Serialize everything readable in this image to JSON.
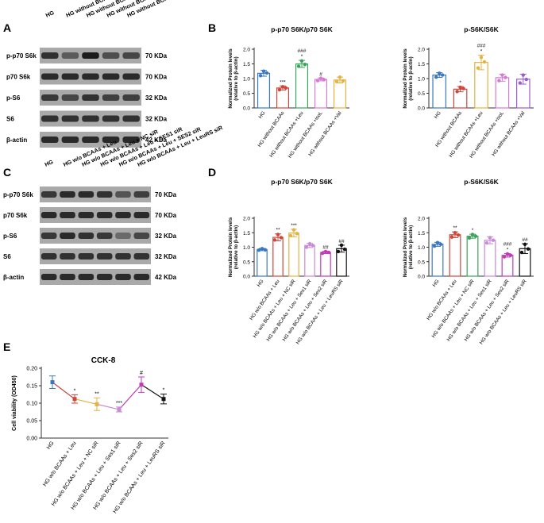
{
  "panel_letters": [
    "A",
    "B",
    "C",
    "D",
    "E"
  ],
  "colors": {
    "HG": "#3a78c0",
    "minus": "#d0453a",
    "leu": "#e3b343",
    "iso": "#d67ad4",
    "val": "#9a5ccf",
    "nc": "#3aa35a",
    "ses1": "#c98bd6",
    "ses2": "#c23ab8",
    "leurs": "#111111",
    "axis": "#333333",
    "blot_bg": "#a9a9a9",
    "band": "#1c1c1c"
  },
  "blotA": {
    "lanes": [
      "HG",
      "HG without BCAAs",
      "HG without BCAAs + Leu",
      "HG without BCAAs + isoLeu",
      "HG without BCAAs + Val"
    ],
    "rows": [
      {
        "label": "p-p70 S6k",
        "kda": "70 KDa",
        "intensity": [
          0.85,
          0.55,
          1.0,
          0.65,
          0.7
        ]
      },
      {
        "label": "p70 S6k",
        "kda": "70 KDa",
        "intensity": [
          0.9,
          0.9,
          0.9,
          0.9,
          0.9
        ]
      },
      {
        "label": "p-S6",
        "kda": "32 KDa",
        "intensity": [
          0.8,
          0.7,
          0.85,
          0.75,
          0.75
        ]
      },
      {
        "label": "S6",
        "kda": "32 KDa",
        "intensity": [
          0.85,
          0.85,
          0.85,
          0.85,
          0.85
        ]
      },
      {
        "label": "β-actin",
        "kda": "42 KDa",
        "intensity": [
          0.9,
          0.9,
          0.9,
          0.9,
          0.9
        ]
      }
    ]
  },
  "blotC": {
    "lanes": [
      "HG",
      "HG w/o BCAAs + Leu",
      "HG w/o BCAAs + Leu + NC siR",
      "HG w/o BCAAs + Leu + SES1 siR",
      "HG w/o BCAAs + Leu + SES2 siR",
      "HG w/o BCAAs + Leu + LeuRS siR"
    ],
    "rows": [
      {
        "label": "p-p70 S6k",
        "kda": "70 KDa",
        "intensity": [
          0.8,
          0.9,
          0.9,
          0.85,
          0.6,
          0.75
        ]
      },
      {
        "label": "p70 S6k",
        "kda": "70 KDa",
        "intensity": [
          0.9,
          0.9,
          0.9,
          0.9,
          0.9,
          0.9
        ]
      },
      {
        "label": "p-S6",
        "kda": "32 KDa",
        "intensity": [
          0.8,
          0.9,
          0.85,
          0.8,
          0.45,
          0.7
        ]
      },
      {
        "label": "S6",
        "kda": "32 KDa",
        "intensity": [
          0.85,
          0.85,
          0.85,
          0.85,
          0.85,
          0.85
        ]
      },
      {
        "label": "β-actin",
        "kda": "42 KDa",
        "intensity": [
          0.9,
          0.9,
          0.9,
          0.9,
          0.9,
          0.9
        ]
      }
    ]
  },
  "chart_data": [
    {
      "panel": "B",
      "type": "bar",
      "title": "p-p70 S6K/p70 S6K",
      "ylabel": "Normalized Protein levels (relative to β-actin)",
      "ylim": [
        0,
        2.0
      ],
      "yticks": [
        0,
        0.5,
        1.0,
        1.5,
        2.0
      ],
      "categories": [
        "HG",
        "HG without BCAAs",
        "HG without BCAAs +Leu",
        "HG without BCAAs +isoL",
        "HG without BCAAs +Val"
      ],
      "values": [
        1.18,
        0.68,
        1.5,
        0.97,
        0.95
      ],
      "errors": [
        0.1,
        0.07,
        0.12,
        0.05,
        0.1
      ],
      "points": [
        [
          1.1,
          1.25,
          1.19
        ],
        [
          0.62,
          0.72,
          0.68
        ],
        [
          1.42,
          1.6,
          1.48
        ],
        [
          0.93,
          1.01,
          0.96
        ],
        [
          0.9,
          1.05,
          0.92
        ]
      ],
      "annotations": [
        "",
        "***",
        "###\n*",
        "#",
        ""
      ],
      "colorKeys": [
        "HG",
        "minus",
        "nc",
        "iso",
        "leu"
      ]
    },
    {
      "panel": "B",
      "type": "bar",
      "title": "p-S6K/S6K",
      "ylabel": "Normalized Protein levels (relative to β-actin)",
      "ylim": [
        0,
        2.0
      ],
      "yticks": [
        0,
        0.5,
        1.0,
        1.5,
        2.0
      ],
      "categories": [
        "HG",
        "HG without BCAAs",
        "HG without BCAAs +Leu",
        "HG without BCAAs +isoL",
        "HG without BCAAs +Val"
      ],
      "values": [
        1.12,
        0.64,
        1.55,
        1.03,
        0.98
      ],
      "errors": [
        0.08,
        0.09,
        0.25,
        0.12,
        0.17
      ],
      "points": [
        [
          1.05,
          1.18,
          1.12
        ],
        [
          0.56,
          0.7,
          0.66
        ],
        [
          1.36,
          1.72,
          1.57
        ],
        [
          0.93,
          1.12,
          1.04
        ],
        [
          0.85,
          1.12,
          0.97
        ]
      ],
      "annotations": [
        "",
        "*",
        "###\n*",
        "",
        ""
      ],
      "colorKeys": [
        "HG",
        "minus",
        "leu",
        "iso",
        "val"
      ]
    },
    {
      "panel": "D",
      "type": "bar",
      "title": "p-p70 S6K/p70 S6K",
      "ylabel": "Normalized Protein levels (relative to β-actin)",
      "ylim": [
        0,
        2.0
      ],
      "yticks": [
        0,
        0.5,
        1.0,
        1.5,
        2.0
      ],
      "categories": [
        "HG",
        "HG w/o BCAAs + Leu",
        "HG w/o BCAAs + Leu + NC siR",
        "HG w/o BCAAs + Leu + Ses1 siR",
        "HG w/o BCAAs + Leu + Ses2 siR",
        "HG w/o BCAAs + Leu + LeuRS siR"
      ],
      "values": [
        0.92,
        1.34,
        1.49,
        1.06,
        0.82,
        0.95
      ],
      "errors": [
        0.04,
        0.12,
        0.13,
        0.07,
        0.04,
        0.12
      ],
      "points": [
        [
          0.9,
          0.95,
          0.91
        ],
        [
          1.25,
          1.44,
          1.33
        ],
        [
          1.4,
          1.6,
          1.47
        ],
        [
          1.0,
          1.12,
          1.06
        ],
        [
          0.79,
          0.85,
          0.82
        ],
        [
          0.85,
          1.07,
          0.93
        ]
      ],
      "annotations": [
        "",
        "**",
        "***",
        "",
        "##",
        "##"
      ],
      "colorKeys": [
        "HG",
        "minus",
        "leu",
        "ses1",
        "ses2",
        "leurs"
      ]
    },
    {
      "panel": "D",
      "type": "bar",
      "title": "p-S6K/S6K",
      "ylabel": "Normalized Protein levels (relative to β-actin)",
      "ylim": [
        0,
        2.0
      ],
      "yticks": [
        0,
        0.5,
        1.0,
        1.5,
        2.0
      ],
      "categories": [
        "HG",
        "HG w/o BCAAs + Leu",
        "HG w/o BCAAs + Leu + NC siR",
        "HG w/o BCAAs + Leu + Ses1 siR",
        "HG w/o BCAAs + Leu + Ses2 siR",
        "HG w/o BCAAs + Leu + LeuRS siR"
      ],
      "values": [
        1.1,
        1.43,
        1.38,
        1.24,
        0.72,
        0.95
      ],
      "errors": [
        0.07,
        0.1,
        0.07,
        0.12,
        0.06,
        0.17
      ],
      "points": [
        [
          1.04,
          1.16,
          1.1
        ],
        [
          1.35,
          1.5,
          1.42
        ],
        [
          1.32,
          1.44,
          1.38
        ],
        [
          1.15,
          1.33,
          1.24
        ],
        [
          0.67,
          0.77,
          0.72
        ],
        [
          0.82,
          1.1,
          0.94
        ]
      ],
      "annotations": [
        "",
        "**",
        "*",
        "",
        "###\n*",
        "##"
      ],
      "colorKeys": [
        "HG",
        "minus",
        "nc",
        "ses1",
        "ses2",
        "leurs"
      ]
    },
    {
      "panel": "E",
      "type": "line",
      "title": "CCK-8",
      "ylabel": "Cell viability (OD450)",
      "ylim": [
        0,
        0.2
      ],
      "yticks": [
        0.0,
        0.05,
        0.1,
        0.15,
        0.2
      ],
      "categories": [
        "HG",
        "HG w/o BCAAs + Leu",
        "HG w/o BCAAs + Leu + NC siR",
        "HG w/o BCAAs + Leu + Ses1 siR",
        "HG w/o BCAAs + Leu + Ses2 siR",
        "HG w/o BCAAs + Leu + LeuRS siR"
      ],
      "values": [
        0.16,
        0.112,
        0.097,
        0.082,
        0.153,
        0.112
      ],
      "errors": [
        0.018,
        0.012,
        0.018,
        0.007,
        0.022,
        0.014
      ],
      "annotations": [
        "",
        "*",
        "**",
        "***",
        "#",
        "*"
      ],
      "colorKeys": [
        "HG",
        "minus",
        "leu",
        "ses1",
        "ses2",
        "leurs"
      ]
    }
  ]
}
